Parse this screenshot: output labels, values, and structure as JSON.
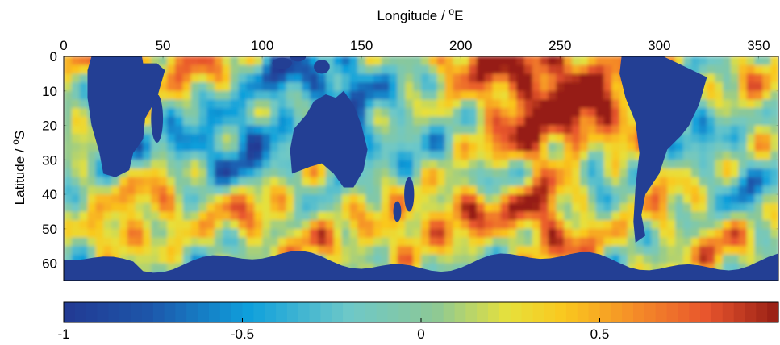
{
  "chart_data": [
    {
      "type": "heatmap",
      "title": "",
      "xlabel": "Longitude / oE",
      "xlabel_parts": {
        "text": "Longitude / ",
        "sup": "o",
        "unit": "E"
      },
      "ylabel": "Latitude / oS",
      "ylabel_parts": {
        "text": "Latitude / ",
        "sup": "o",
        "unit": "S"
      },
      "x_axis_position": "top",
      "xlim": [
        0,
        360
      ],
      "ylim": [
        0,
        65
      ],
      "y_direction": "reversed",
      "xticks": [
        0,
        50,
        100,
        150,
        200,
        250,
        300,
        350
      ],
      "yticks": [
        0,
        10,
        20,
        30,
        40,
        50,
        60
      ],
      "zlim": [
        -1,
        1
      ],
      "colormap": "jet",
      "land_color": "#233f94",
      "land_features": [
        {
          "name": "Africa",
          "lon_range": [
            10,
            52
          ],
          "lat_range": [
            -5,
            35
          ]
        },
        {
          "name": "Australia",
          "lon_range": [
            114,
            154
          ],
          "lat_range": [
            10,
            39
          ]
        },
        {
          "name": "South America",
          "lon_range": [
            280,
            326
          ],
          "lat_range": [
            -5,
            55
          ]
        },
        {
          "name": "Antarctica",
          "lon_range": [
            0,
            360
          ],
          "lat_range": [
            56,
            65
          ]
        }
      ],
      "grid": false,
      "legend": "none"
    },
    {
      "type": "colorbar",
      "orientation": "horizontal",
      "range": [
        -1,
        1
      ],
      "ticks": [
        -1,
        -0.5,
        0,
        0.5
      ],
      "tick_labels": [
        "-1",
        "-0.5",
        "0",
        "0.5"
      ],
      "colormap": "jet",
      "levels": 64
    }
  ]
}
